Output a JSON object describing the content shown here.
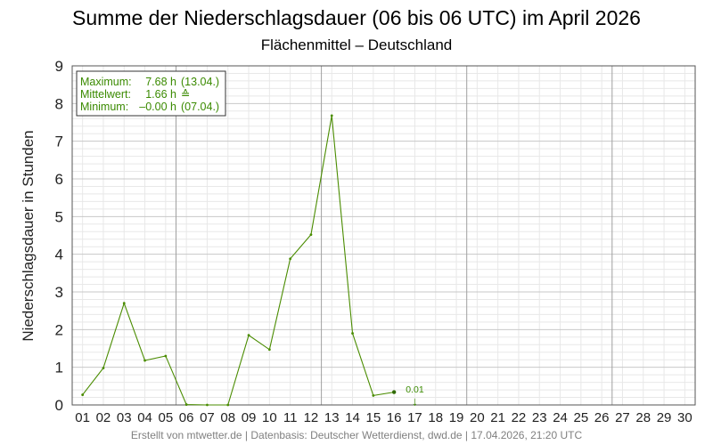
{
  "chart_data": {
    "type": "line",
    "title": "Summe der Niederschlagsdauer (06 bis 06 UTC) im April 2026",
    "subtitle": "Flächenmittel – Deutschland",
    "xlabel": "",
    "ylabel": "Niederschlagsdauer in Stunden",
    "categories": [
      "01",
      "02",
      "03",
      "04",
      "05",
      "06",
      "07",
      "08",
      "09",
      "10",
      "11",
      "12",
      "13",
      "14",
      "15",
      "16",
      "17",
      "18",
      "19",
      "20",
      "21",
      "22",
      "23",
      "24",
      "25",
      "26",
      "27",
      "28",
      "29",
      "30"
    ],
    "ylim": [
      0,
      9
    ],
    "yticks": [
      "0",
      "1",
      "2",
      "3",
      "4",
      "5",
      "6",
      "7",
      "8",
      "9"
    ],
    "grid": true,
    "series": [
      {
        "values": [
          0.27,
          0.98,
          2.7,
          1.18,
          1.3,
          0.01,
          0.0,
          0.0,
          1.85,
          1.47,
          3.88,
          4.52,
          7.68,
          1.9,
          0.25,
          0.34,
          null,
          null,
          null,
          null,
          null,
          null,
          null,
          null,
          null,
          null,
          null,
          null,
          null,
          null
        ]
      }
    ],
    "stats_box": {
      "placement": "top-left",
      "rows": [
        {
          "label": "Maximum:",
          "value": "7.68 h",
          "extra": "(13.04.)"
        },
        {
          "label": "Mittelwert:",
          "value": "1.66 h",
          "extra": "≙"
        },
        {
          "label": "Minimum:",
          "value": "–0.00 h",
          "extra": "(07.04.)"
        }
      ]
    },
    "annotation": {
      "category": "17",
      "value": 0.01,
      "text": "0.01",
      "marker": "↓"
    },
    "footer": "Erstellt von mtwetter.de | Datenbasis: Deutscher Wetterdienst, dwd.de | 17.04.2026, 21:20 UTC",
    "colors": {
      "line": "#4a8c00",
      "text_green": "#3a8a00",
      "grid_major": "#c8c8c8",
      "grid_minor": "#e8e8e8",
      "week_line": "#a0a0a0"
    }
  }
}
